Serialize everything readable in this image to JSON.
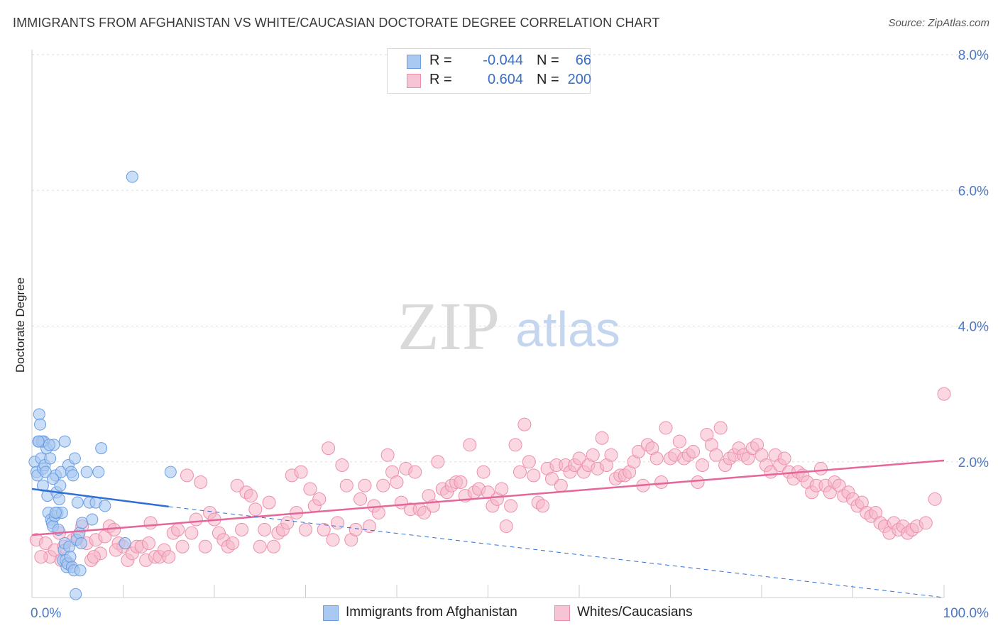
{
  "title": "IMMIGRANTS FROM AFGHANISTAN VS WHITE/CAUCASIAN DOCTORATE DEGREE CORRELATION CHART",
  "source": "Source: ZipAtlas.com",
  "watermark": {
    "zip": "ZIP",
    "atlas": "atlas"
  },
  "legend": {
    "r_label": "R =",
    "n_label": "N =",
    "rows": [
      {
        "r": "-0.044",
        "n": "66"
      },
      {
        "r": "0.604",
        "n": "200"
      }
    ]
  },
  "colors": {
    "blue_fill": "#a9c8f2",
    "blue_stroke": "#6b9ee0",
    "blue_line": "#2f6fd6",
    "pink_fill": "#f6b6c9",
    "pink_stroke": "#ec8fac",
    "pink_line": "#e5679a",
    "tick_text": "#4a78c8",
    "grid": "#dddddd"
  },
  "chart_data": {
    "type": "scatter",
    "title": "IMMIGRANTS FROM AFGHANISTAN VS WHITE/CAUCASIAN DOCTORATE DEGREE CORRELATION CHART",
    "xlabel": "",
    "ylabel": "Doctorate Degree",
    "xlim": [
      0,
      100
    ],
    "ylim": [
      0,
      8.2
    ],
    "x_tick_labels": [
      "0.0%",
      "100.0%"
    ],
    "y_ticks": [
      2,
      4,
      6,
      8
    ],
    "y_tick_labels": [
      "2.0%",
      "4.0%",
      "6.0%",
      "8.0%"
    ],
    "grid": true,
    "series": [
      {
        "name": "Immigrants from Afghanistan",
        "color": "blue",
        "R": -0.044,
        "N": 66,
        "trend_solid": [
          [
            0,
            1.6
          ],
          [
            15,
            1.34
          ]
        ],
        "trend_dashed": [
          [
            15,
            1.34
          ],
          [
            100,
            0.0
          ]
        ],
        "points": [
          [
            0.3,
            2.0
          ],
          [
            0.5,
            1.85
          ],
          [
            0.6,
            1.8
          ],
          [
            0.8,
            2.3
          ],
          [
            0.8,
            2.7
          ],
          [
            0.9,
            2.55
          ],
          [
            1.0,
            2.05
          ],
          [
            1.2,
            1.9
          ],
          [
            1.3,
            2.3
          ],
          [
            1.4,
            1.95
          ],
          [
            1.5,
            1.85
          ],
          [
            1.6,
            2.2
          ],
          [
            1.7,
            1.5
          ],
          [
            1.8,
            1.25
          ],
          [
            2.0,
            2.05
          ],
          [
            2.1,
            1.15
          ],
          [
            2.2,
            1.1
          ],
          [
            2.3,
            1.05
          ],
          [
            2.4,
            2.25
          ],
          [
            2.5,
            1.2
          ],
          [
            2.6,
            1.8
          ],
          [
            2.7,
            1.55
          ],
          [
            2.8,
            1.25
          ],
          [
            2.9,
            1.0
          ],
          [
            3.0,
            1.45
          ],
          [
            3.1,
            1.65
          ],
          [
            3.2,
            1.85
          ],
          [
            3.3,
            1.25
          ],
          [
            3.4,
            0.55
          ],
          [
            3.5,
            0.7
          ],
          [
            3.6,
            0.8
          ],
          [
            3.7,
            0.55
          ],
          [
            3.8,
            0.45
          ],
          [
            3.9,
            0.5
          ],
          [
            4.0,
            1.95
          ],
          [
            4.1,
            0.75
          ],
          [
            4.2,
            0.6
          ],
          [
            4.3,
            1.85
          ],
          [
            4.4,
            0.45
          ],
          [
            4.5,
            1.8
          ],
          [
            4.6,
            0.4
          ],
          [
            4.7,
            2.05
          ],
          [
            4.8,
            0.05
          ],
          [
            4.9,
            0.85
          ],
          [
            5.0,
            1.4
          ],
          [
            5.2,
            0.95
          ],
          [
            5.3,
            0.4
          ],
          [
            5.4,
            0.8
          ],
          [
            5.5,
            1.1
          ],
          [
            6.0,
            1.85
          ],
          [
            6.3,
            1.4
          ],
          [
            6.6,
            1.15
          ],
          [
            7.0,
            1.4
          ],
          [
            7.3,
            1.85
          ],
          [
            7.6,
            2.2
          ],
          [
            8.0,
            1.35
          ],
          [
            10.2,
            0.8
          ],
          [
            11.0,
            6.2
          ],
          [
            15.2,
            1.85
          ],
          [
            1.1,
            2.3
          ],
          [
            1.9,
            2.25
          ],
          [
            2.3,
            1.75
          ],
          [
            3.6,
            2.3
          ],
          [
            0.7,
            2.3
          ],
          [
            1.2,
            1.65
          ],
          [
            2.6,
            1.25
          ]
        ]
      },
      {
        "name": "Whites/Caucasians",
        "color": "pink",
        "R": 0.604,
        "N": 200,
        "trend": [
          [
            0,
            0.92
          ],
          [
            100,
            2.02
          ]
        ],
        "points": [
          [
            0.5,
            0.85
          ],
          [
            1.5,
            0.8
          ],
          [
            2.0,
            0.6
          ],
          [
            2.5,
            0.7
          ],
          [
            3.0,
            0.95
          ],
          [
            3.5,
            0.75
          ],
          [
            4.0,
            0.5
          ],
          [
            4.5,
            0.85
          ],
          [
            5.0,
            0.9
          ],
          [
            5.5,
            1.05
          ],
          [
            6.0,
            0.8
          ],
          [
            6.5,
            0.55
          ],
          [
            7.0,
            0.85
          ],
          [
            7.5,
            0.65
          ],
          [
            8.0,
            0.9
          ],
          [
            8.5,
            1.05
          ],
          [
            9.0,
            1.0
          ],
          [
            9.5,
            0.8
          ],
          [
            10.0,
            0.75
          ],
          [
            10.5,
            0.55
          ],
          [
            11.0,
            0.65
          ],
          [
            11.5,
            0.75
          ],
          [
            12.0,
            0.75
          ],
          [
            12.5,
            0.55
          ],
          [
            13.0,
            1.1
          ],
          [
            13.5,
            0.6
          ],
          [
            14.0,
            0.6
          ],
          [
            14.5,
            0.7
          ],
          [
            15.0,
            0.6
          ],
          [
            15.5,
            0.95
          ],
          [
            16.0,
            1.0
          ],
          [
            16.5,
            0.75
          ],
          [
            17.0,
            1.8
          ],
          [
            17.5,
            0.95
          ],
          [
            18.0,
            1.15
          ],
          [
            18.5,
            1.7
          ],
          [
            19.0,
            0.75
          ],
          [
            19.5,
            1.25
          ],
          [
            20.0,
            1.15
          ],
          [
            20.5,
            0.95
          ],
          [
            21.0,
            0.85
          ],
          [
            21.5,
            0.75
          ],
          [
            22.0,
            0.8
          ],
          [
            22.5,
            1.65
          ],
          [
            23.0,
            1.0
          ],
          [
            23.5,
            1.55
          ],
          [
            24.0,
            1.5
          ],
          [
            24.5,
            1.3
          ],
          [
            25.0,
            0.75
          ],
          [
            25.5,
            1.0
          ],
          [
            26.0,
            1.4
          ],
          [
            26.5,
            0.75
          ],
          [
            27.0,
            0.95
          ],
          [
            27.5,
            1.0
          ],
          [
            28.0,
            1.1
          ],
          [
            28.5,
            1.8
          ],
          [
            29.0,
            1.25
          ],
          [
            29.5,
            1.85
          ],
          [
            30.0,
            1.0
          ],
          [
            30.5,
            1.6
          ],
          [
            31.0,
            1.35
          ],
          [
            31.5,
            1.45
          ],
          [
            32.0,
            1.0
          ],
          [
            32.5,
            2.2
          ],
          [
            33.0,
            0.85
          ],
          [
            33.5,
            1.1
          ],
          [
            34.0,
            1.95
          ],
          [
            34.5,
            1.65
          ],
          [
            35.0,
            0.85
          ],
          [
            35.5,
            1.0
          ],
          [
            36.0,
            1.45
          ],
          [
            36.5,
            1.65
          ],
          [
            37.0,
            1.05
          ],
          [
            37.5,
            1.35
          ],
          [
            38.0,
            1.25
          ],
          [
            38.5,
            1.65
          ],
          [
            39.0,
            2.1
          ],
          [
            39.5,
            1.85
          ],
          [
            40.0,
            1.7
          ],
          [
            40.5,
            1.4
          ],
          [
            41.0,
            1.9
          ],
          [
            41.5,
            1.3
          ],
          [
            42.0,
            1.85
          ],
          [
            42.5,
            1.3
          ],
          [
            43.0,
            1.25
          ],
          [
            43.5,
            1.5
          ],
          [
            44.0,
            1.35
          ],
          [
            44.5,
            2.0
          ],
          [
            45.0,
            1.6
          ],
          [
            45.5,
            1.55
          ],
          [
            46.0,
            1.65
          ],
          [
            46.5,
            1.7
          ],
          [
            47.0,
            1.7
          ],
          [
            47.5,
            1.5
          ],
          [
            48.0,
            2.25
          ],
          [
            48.5,
            1.55
          ],
          [
            49.0,
            1.6
          ],
          [
            49.5,
            1.85
          ],
          [
            50.0,
            1.55
          ],
          [
            50.5,
            1.35
          ],
          [
            51.0,
            1.45
          ],
          [
            51.5,
            1.6
          ],
          [
            52.0,
            1.05
          ],
          [
            52.5,
            1.35
          ],
          [
            53.0,
            2.25
          ],
          [
            53.5,
            1.85
          ],
          [
            54.0,
            2.55
          ],
          [
            54.5,
            2.0
          ],
          [
            55.0,
            1.8
          ],
          [
            55.5,
            1.4
          ],
          [
            56.0,
            1.35
          ],
          [
            56.5,
            1.9
          ],
          [
            57.0,
            1.75
          ],
          [
            57.5,
            1.95
          ],
          [
            58.0,
            1.65
          ],
          [
            58.5,
            1.95
          ],
          [
            59.0,
            1.85
          ],
          [
            59.5,
            1.95
          ],
          [
            60.0,
            2.05
          ],
          [
            60.5,
            1.85
          ],
          [
            61.0,
            1.95
          ],
          [
            61.5,
            2.1
          ],
          [
            62.0,
            1.9
          ],
          [
            62.5,
            2.35
          ],
          [
            63.0,
            1.95
          ],
          [
            63.5,
            2.1
          ],
          [
            64.0,
            1.75
          ],
          [
            64.5,
            1.8
          ],
          [
            65.0,
            1.8
          ],
          [
            65.5,
            1.85
          ],
          [
            66.0,
            2.0
          ],
          [
            66.5,
            2.15
          ],
          [
            67.0,
            1.65
          ],
          [
            67.5,
            2.25
          ],
          [
            68.0,
            2.2
          ],
          [
            68.5,
            2.05
          ],
          [
            69.0,
            1.7
          ],
          [
            69.5,
            2.5
          ],
          [
            70.0,
            2.05
          ],
          [
            70.5,
            2.1
          ],
          [
            71.0,
            2.3
          ],
          [
            71.5,
            2.05
          ],
          [
            72.0,
            2.1
          ],
          [
            72.5,
            2.15
          ],
          [
            73.0,
            1.7
          ],
          [
            73.5,
            1.95
          ],
          [
            74.0,
            2.4
          ],
          [
            74.5,
            2.25
          ],
          [
            75.0,
            2.1
          ],
          [
            75.5,
            2.5
          ],
          [
            76.0,
            1.95
          ],
          [
            76.5,
            2.05
          ],
          [
            77.0,
            2.1
          ],
          [
            77.5,
            2.2
          ],
          [
            78.0,
            2.1
          ],
          [
            78.5,
            2.05
          ],
          [
            79.0,
            2.2
          ],
          [
            79.5,
            2.25
          ],
          [
            80.0,
            2.1
          ],
          [
            80.5,
            1.95
          ],
          [
            81.0,
            1.85
          ],
          [
            81.5,
            2.1
          ],
          [
            82.0,
            1.95
          ],
          [
            82.5,
            2.05
          ],
          [
            83.0,
            1.85
          ],
          [
            83.5,
            1.75
          ],
          [
            84.0,
            1.85
          ],
          [
            84.5,
            1.8
          ],
          [
            85.0,
            1.7
          ],
          [
            85.5,
            1.55
          ],
          [
            86.0,
            1.65
          ],
          [
            86.5,
            1.9
          ],
          [
            87.0,
            1.65
          ],
          [
            87.5,
            1.55
          ],
          [
            88.0,
            1.7
          ],
          [
            88.5,
            1.65
          ],
          [
            89.0,
            1.5
          ],
          [
            89.5,
            1.55
          ],
          [
            90.0,
            1.45
          ],
          [
            90.5,
            1.35
          ],
          [
            91.0,
            1.4
          ],
          [
            91.5,
            1.25
          ],
          [
            92.0,
            1.2
          ],
          [
            92.5,
            1.25
          ],
          [
            93.0,
            1.1
          ],
          [
            93.5,
            1.05
          ],
          [
            94.0,
            0.95
          ],
          [
            94.5,
            1.1
          ],
          [
            95.0,
            1.0
          ],
          [
            95.5,
            1.05
          ],
          [
            96.0,
            0.95
          ],
          [
            96.5,
            1.0
          ],
          [
            97.0,
            1.05
          ],
          [
            98.0,
            1.1
          ],
          [
            99.0,
            1.45
          ],
          [
            100.0,
            3.0
          ],
          [
            1.0,
            0.6
          ],
          [
            3.2,
            0.55
          ],
          [
            6.8,
            0.6
          ],
          [
            9.2,
            0.7
          ],
          [
            12.8,
            0.8
          ]
        ]
      }
    ]
  },
  "bottom_legend": [
    {
      "label": "Immigrants from Afghanistan"
    },
    {
      "label": "Whites/Caucasians"
    }
  ]
}
